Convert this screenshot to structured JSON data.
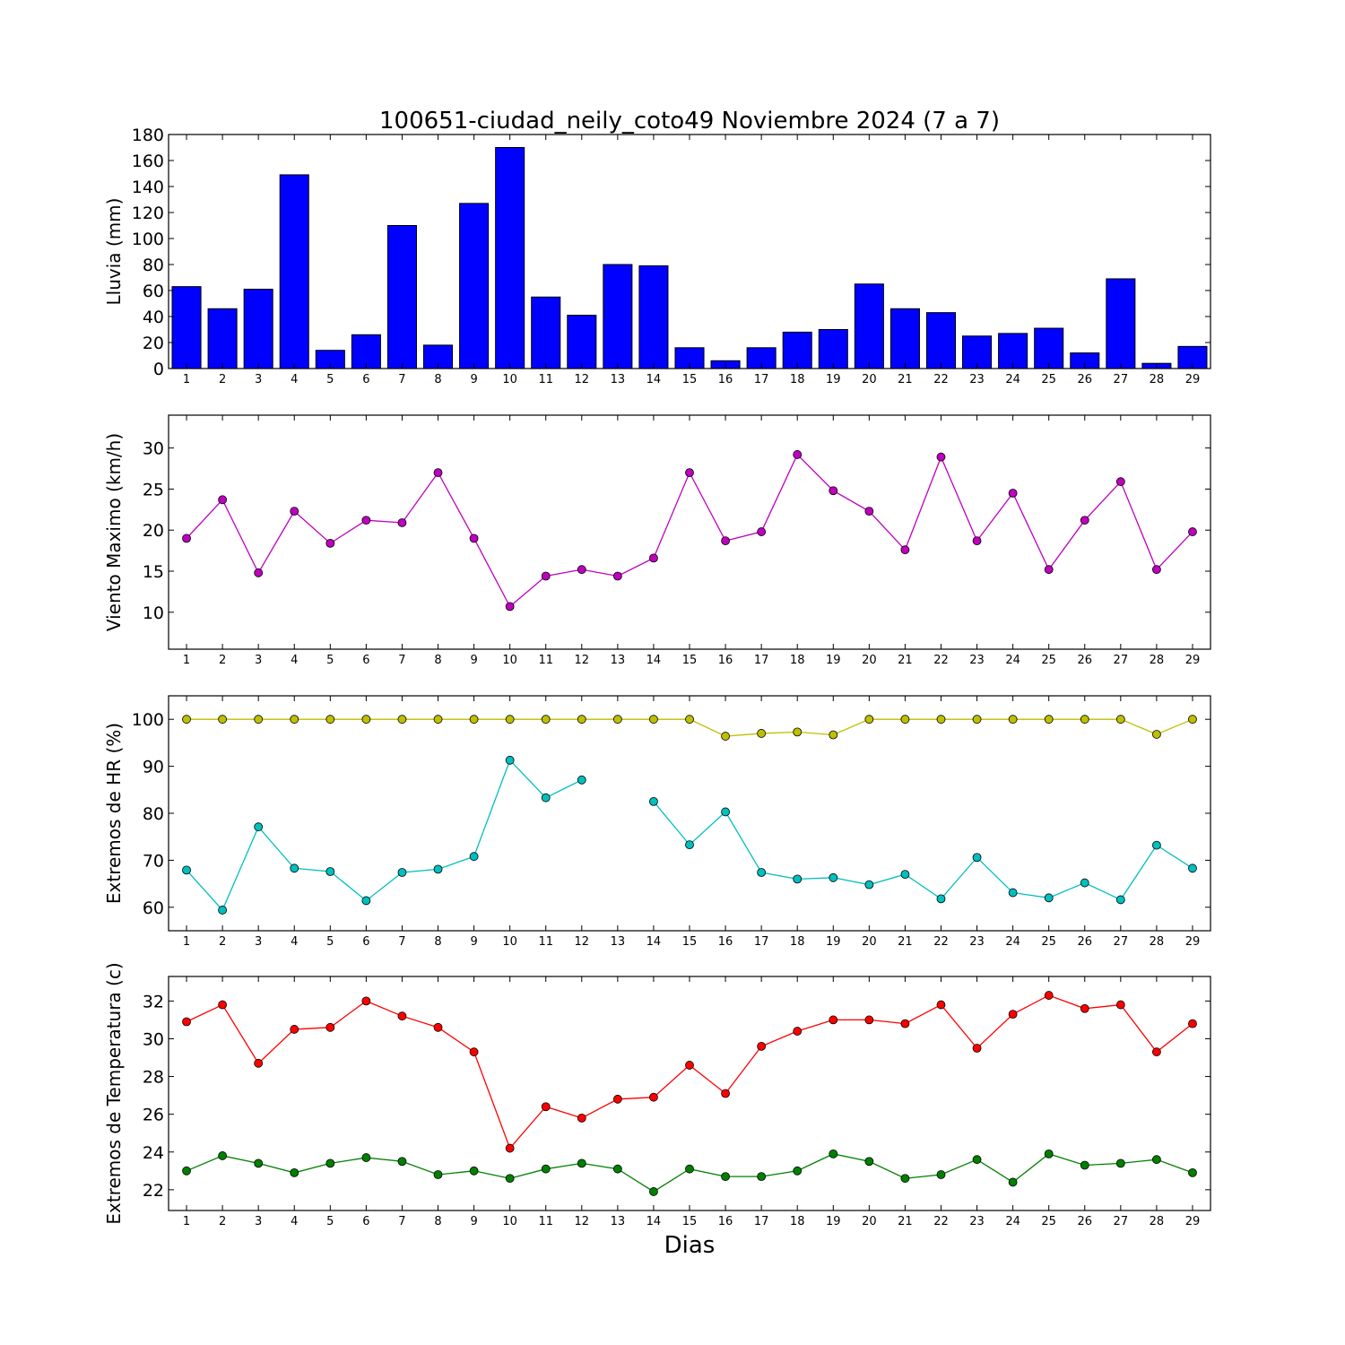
{
  "figure": {
    "title": "100651-ciudad_neily_coto49 Noviembre 2024  (7 a 7)",
    "xlabel": "Dias"
  },
  "colors": {
    "rain_bar": "#0000ff",
    "wind": "#bf00bf",
    "hr_max": "#bfbf00",
    "hr_min": "#00bfbf",
    "temp_max": "#ff0000",
    "temp_min": "#008000"
  },
  "chart_data": [
    {
      "type": "bar",
      "ylabel": "Lluvia (mm)",
      "categories": [
        1,
        2,
        3,
        4,
        5,
        6,
        7,
        8,
        9,
        10,
        11,
        12,
        13,
        14,
        15,
        16,
        17,
        18,
        19,
        20,
        21,
        22,
        23,
        24,
        25,
        26,
        27,
        28,
        29
      ],
      "values": [
        63,
        46,
        61,
        149,
        14,
        26,
        110,
        18,
        127,
        170,
        55,
        41,
        80,
        79,
        16,
        6,
        16,
        28,
        30,
        65,
        46,
        43,
        25,
        27,
        31,
        12,
        69,
        4,
        17
      ],
      "ylim": [
        0,
        180
      ],
      "yticks": [
        0,
        20,
        40,
        60,
        80,
        100,
        120,
        140,
        160,
        180
      ],
      "xlim": [
        0.5,
        29.5
      ]
    },
    {
      "type": "line",
      "ylabel": "Viento Maximo (km/h)",
      "x": [
        1,
        2,
        3,
        4,
        5,
        6,
        7,
        8,
        9,
        10,
        11,
        12,
        13,
        14,
        15,
        16,
        17,
        18,
        19,
        20,
        21,
        22,
        23,
        24,
        25,
        26,
        27,
        28,
        29
      ],
      "series": [
        {
          "color": "#bf00bf",
          "values": [
            19.0,
            23.7,
            14.8,
            22.3,
            18.4,
            21.2,
            20.9,
            27.0,
            19.0,
            10.7,
            14.4,
            15.2,
            14.4,
            16.6,
            27.0,
            18.7,
            19.8,
            29.2,
            24.8,
            22.3,
            17.6,
            28.9,
            18.7,
            24.5,
            15.2,
            21.2,
            25.9,
            15.2,
            19.8
          ]
        }
      ],
      "ylim": [
        5.5,
        34
      ],
      "yticks": [
        10,
        15,
        20,
        25,
        30
      ],
      "xlim": [
        0.5,
        29.5
      ]
    },
    {
      "type": "line",
      "ylabel": "Extremos de HR (%)",
      "x": [
        1,
        2,
        3,
        4,
        5,
        6,
        7,
        8,
        9,
        10,
        11,
        12,
        13,
        14,
        15,
        16,
        17,
        18,
        19,
        20,
        21,
        22,
        23,
        24,
        25,
        26,
        27,
        28,
        29
      ],
      "series": [
        {
          "color": "#bfbf00",
          "values": [
            100,
            100,
            100,
            100,
            100,
            100,
            100,
            100,
            100,
            100,
            100,
            100,
            100,
            100,
            100,
            96.4,
            97.0,
            97.3,
            96.7,
            100,
            100,
            100,
            100,
            100,
            100,
            100,
            100,
            96.8,
            100
          ]
        },
        {
          "color": "#00bfbf",
          "values": [
            67.9,
            59.4,
            77.1,
            68.3,
            67.6,
            61.4,
            67.4,
            68.1,
            70.8,
            91.3,
            83.3,
            87.1,
            null,
            82.5,
            73.3,
            80.3,
            67.4,
            66.0,
            66.3,
            64.8,
            67.0,
            61.8,
            70.6,
            63.1,
            62.0,
            65.2,
            61.6,
            73.2,
            68.3
          ]
        }
      ],
      "ylim": [
        55,
        105
      ],
      "yticks": [
        60,
        70,
        80,
        90,
        100
      ],
      "xlim": [
        0.5,
        29.5
      ]
    },
    {
      "type": "line",
      "ylabel": "Extremos de Temperatura (c)",
      "x": [
        1,
        2,
        3,
        4,
        5,
        6,
        7,
        8,
        9,
        10,
        11,
        12,
        13,
        14,
        15,
        16,
        17,
        18,
        19,
        20,
        21,
        22,
        23,
        24,
        25,
        26,
        27,
        28,
        29
      ],
      "series": [
        {
          "color": "#ff0000",
          "values": [
            30.9,
            31.8,
            28.7,
            30.5,
            30.6,
            32.0,
            31.2,
            30.6,
            29.3,
            24.2,
            26.4,
            25.8,
            26.8,
            26.9,
            28.6,
            27.1,
            29.6,
            30.4,
            31.0,
            31.0,
            30.8,
            31.8,
            29.5,
            31.3,
            32.3,
            31.6,
            31.8,
            29.3,
            30.8
          ]
        },
        {
          "color": "#008000",
          "values": [
            23.0,
            23.8,
            23.4,
            22.9,
            23.4,
            23.7,
            23.5,
            22.8,
            23.0,
            22.6,
            23.1,
            23.4,
            23.1,
            21.9,
            23.1,
            22.7,
            22.7,
            23.0,
            23.9,
            23.5,
            22.6,
            22.8,
            23.6,
            22.4,
            23.9,
            23.3,
            23.4,
            23.6,
            22.9
          ]
        }
      ],
      "ylim": [
        20.9,
        33.3
      ],
      "yticks": [
        22,
        24,
        26,
        28,
        30,
        32
      ],
      "xlim": [
        0.5,
        29.5
      ]
    }
  ]
}
